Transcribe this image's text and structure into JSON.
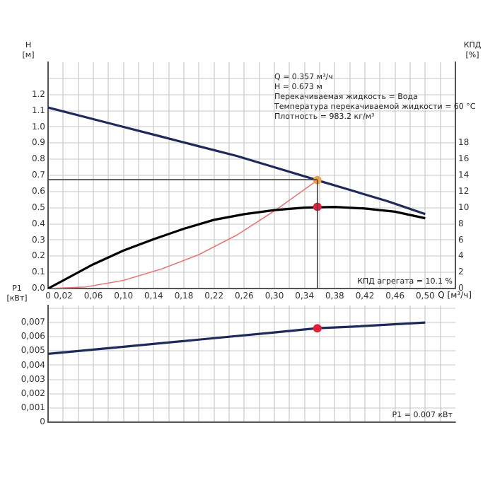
{
  "chart_data": [
    {
      "type": "line",
      "ylabel": "H [м]",
      "y2label": "КПД [%]",
      "xlabel": "Q [м³/ч]",
      "annotations": [
        "Q = 0.357 м³/ч",
        "H = 0.673 м",
        "Перекачиваемая жидкость = Вода",
        "Температура перекачиваемой жидкости = 60 °C",
        "Плотность = 983.2 кг/м³",
        "КПД агрегата = 10.1 %"
      ],
      "series": [
        {
          "color": "#1f2a5c",
          "x": [
            0,
            0.05,
            0.1,
            0.15,
            0.2,
            0.25,
            0.3,
            0.357,
            0.4,
            0.45,
            0.5
          ],
          "values": [
            1.12,
            1.06,
            1.0,
            0.94,
            0.88,
            0.82,
            0.75,
            0.67,
            0.61,
            0.54,
            0.46
          ]
        },
        {
          "color": "#000000",
          "axis": "y2",
          "x": [
            0,
            0.02,
            0.06,
            0.1,
            0.14,
            0.18,
            0.22,
            0.26,
            0.3,
            0.34,
            0.38,
            0.42,
            0.46,
            0.5
          ],
          "values": [
            0,
            1.0,
            3.0,
            4.7,
            6.1,
            7.4,
            8.5,
            9.2,
            9.7,
            10.0,
            10.1,
            9.9,
            9.5,
            8.7
          ]
        },
        {
          "color": "#e87878",
          "x": [
            0,
            0.05,
            0.1,
            0.15,
            0.2,
            0.25,
            0.3,
            0.357
          ],
          "values": [
            0,
            0.01,
            0.05,
            0.12,
            0.21,
            0.33,
            0.48,
            0.67
          ]
        },
        {
          "type": "scatter",
          "color": "#f0a040",
          "marker": "circle",
          "x": [
            0.357
          ],
          "values": [
            0.67
          ]
        },
        {
          "type": "scatter",
          "color": "#e0203a",
          "marker": "circle",
          "axis": "y2",
          "x": [
            0.357
          ],
          "values": [
            10.1
          ]
        }
      ],
      "xlim": [
        0,
        0.54
      ],
      "xticks": [
        0,
        {
          "value": 0.02,
          "label": "0,02"
        },
        {
          "value": 0.04,
          "label": null
        },
        {
          "value": 0.06,
          "label": "0,06"
        },
        {
          "value": 0.08,
          "label": null
        },
        {
          "value": 0.1,
          "label": "0,10"
        },
        {
          "value": 0.12,
          "label": null
        },
        {
          "value": 0.14,
          "label": "0,14"
        },
        {
          "value": 0.16,
          "label": null
        },
        {
          "value": 0.18,
          "label": "0,18"
        },
        {
          "value": 0.2,
          "label": null
        },
        {
          "value": 0.22,
          "label": "0,22"
        },
        {
          "value": 0.24,
          "label": null
        },
        {
          "value": 0.26,
          "label": "0,26"
        },
        {
          "value": 0.28,
          "label": null
        },
        {
          "value": 0.3,
          "label": "0,30"
        },
        {
          "value": 0.32,
          "label": null
        },
        {
          "value": 0.34,
          "label": "0,34"
        },
        {
          "value": 0.36,
          "label": null
        },
        {
          "value": 0.38,
          "label": "0,38"
        },
        {
          "value": 0.4,
          "label": null
        },
        {
          "value": 0.42,
          "label": "0,42"
        },
        {
          "value": 0.44,
          "label": null
        },
        {
          "value": 0.46,
          "label": "0,46"
        },
        {
          "value": 0.48,
          "label": null
        },
        {
          "value": 0.5,
          "label": "0,50"
        },
        {
          "value": 0.52,
          "label": null
        }
      ],
      "ylim": [
        0,
        1.4
      ],
      "yticks": [
        {
          "value": 0,
          "label": "0.0"
        },
        0.1,
        0.2,
        0.3,
        0.4,
        0.5,
        0.6,
        0.7,
        0.8,
        0.9,
        {
          "value": 1,
          "label": "1.0"
        },
        1.1,
        1.2,
        {
          "value": 1.3,
          "label": null
        }
      ],
      "y2lim": [
        0,
        28
      ],
      "y2ticks": [
        0,
        2,
        4,
        6,
        8,
        10,
        12,
        14,
        16,
        18
      ],
      "ref_lines": [
        {
          "axis": "y",
          "value": 0.673,
          "color": "#444444"
        },
        {
          "axis": "x",
          "value": 0.357,
          "color": "#444444"
        }
      ],
      "grid": true,
      "legend": false,
      "marker": "none",
      "line_style": "solid"
    },
    {
      "type": "line",
      "ylabel": "P1 [кВт]",
      "annotations": [
        "P1 = 0.007 кВт"
      ],
      "series": [
        {
          "color": "#1f2a5c",
          "x": [
            0,
            0.1,
            0.2,
            0.3,
            0.357,
            0.4,
            0.5
          ],
          "values": [
            0.0048,
            0.0053,
            0.0058,
            0.0063,
            0.0066,
            0.0067,
            0.007
          ]
        },
        {
          "type": "scatter",
          "color": "#e0203a",
          "marker": "circle",
          "x": [
            0.357
          ],
          "values": [
            0.0066
          ]
        }
      ],
      "xlim": [
        0,
        0.54
      ],
      "xticks": [
        0,
        0.02,
        0.04,
        0.06,
        0.08,
        0.1,
        0.12,
        0.14,
        0.16,
        0.18,
        0.2,
        0.22,
        0.24,
        0.26,
        0.28,
        0.3,
        0.32,
        0.34,
        0.36,
        0.38,
        0.4,
        0.42,
        0.44,
        0.46,
        0.48,
        0.5,
        0.52
      ],
      "ylim": [
        0,
        0.0082
      ],
      "yticks": [
        0,
        {
          "value": 0.001,
          "label": "0,001"
        },
        {
          "value": 0.002,
          "label": "0,002"
        },
        {
          "value": 0.003,
          "label": "0,003"
        },
        {
          "value": 0.004,
          "label": "0,004"
        },
        {
          "value": 0.005,
          "label": "0,005"
        },
        {
          "value": 0.006,
          "label": "0,006"
        },
        {
          "value": 0.007,
          "label": "0,007"
        },
        {
          "value": 0.008,
          "label": null
        }
      ],
      "tick_labels": "y",
      "grid": true,
      "legend": false,
      "marker": "none",
      "line_style": "solid"
    }
  ]
}
